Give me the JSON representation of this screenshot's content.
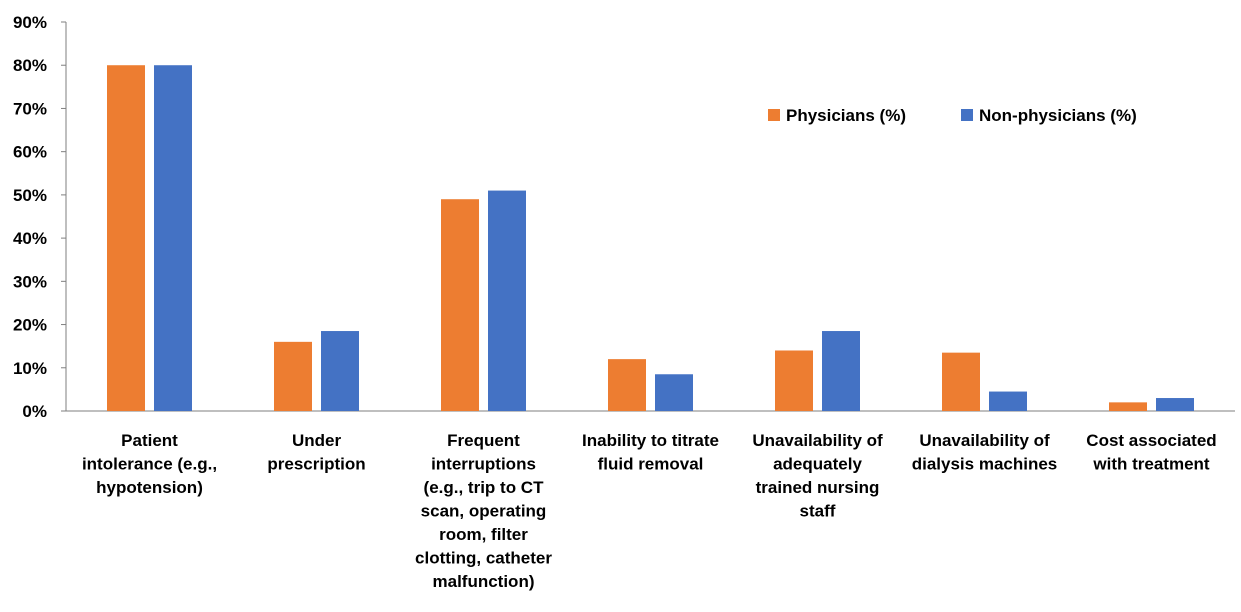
{
  "chart_data": {
    "type": "bar",
    "categories": [
      [
        "Patient",
        "intolerance (e.g.,",
        "hypotension)"
      ],
      [
        "Under",
        "prescription"
      ],
      [
        "Frequent",
        "interruptions",
        "(e.g., trip to CT",
        "scan, operating",
        "room, filter",
        "clotting, catheter",
        "malfunction)"
      ],
      [
        "Inability to titrate",
        "fluid removal"
      ],
      [
        "Unavailability of",
        "adequately",
        "trained nursing",
        "staff"
      ],
      [
        "Unavailability of",
        "dialysis machines"
      ],
      [
        "Cost associated",
        "with treatment"
      ]
    ],
    "series": [
      {
        "name": "Physicians (%)",
        "color": "#ED7D31",
        "values": [
          80,
          16,
          49,
          12,
          14,
          13.5,
          2
        ]
      },
      {
        "name": "Non-physicians (%)",
        "color": "#4472C4",
        "values": [
          80,
          18.5,
          51,
          8.5,
          18.5,
          4.5,
          3
        ]
      }
    ],
    "ylim": [
      0,
      90
    ],
    "yticks": [
      "0%",
      "10%",
      "20%",
      "30%",
      "40%",
      "50%",
      "60%",
      "70%",
      "80%",
      "90%"
    ],
    "ytick_values": [
      0,
      10,
      20,
      30,
      40,
      50,
      60,
      70,
      80,
      90
    ],
    "grid": false,
    "legend_position": "top-right"
  }
}
